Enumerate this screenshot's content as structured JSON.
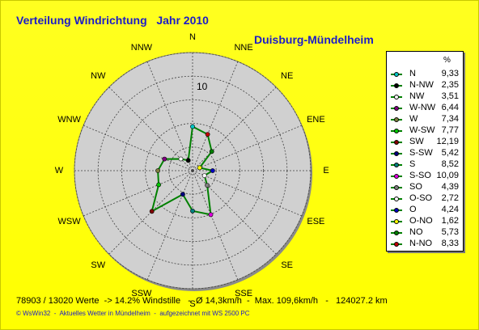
{
  "title": "Verteilung Windrichtung   Jahr 2010",
  "station": "Duisburg-Mündelheim",
  "footer": "78903 / 13020 Werte  -> 14.2% Windstille   -  Ø 14,3km/h  -  Max. 109,6km/h   -   124027.2 km",
  "credit": "© WsWin32  -  Aktuelles Wetter in Mündelheim  -  aufgezeichnet mit WS 2500 PC",
  "chart_data": {
    "type": "radar",
    "ring_label": "10",
    "rmax": 25,
    "rings": [
      5,
      10,
      15,
      20,
      25
    ],
    "legend_header": "%",
    "directions": [
      "N",
      "NNE",
      "NE",
      "ENE",
      "E",
      "ESE",
      "SE",
      "SSE",
      "S",
      "SSW",
      "SW",
      "WSW",
      "W",
      "WNW",
      "NW",
      "NNW"
    ],
    "series": [
      {
        "label": "N",
        "value": "9,33",
        "deg": 0,
        "color": "#00c8c8"
      },
      {
        "label": "N-NW",
        "value": "2,35",
        "deg": 337.5,
        "color": "#000000"
      },
      {
        "label": "NW",
        "value": "3,51",
        "deg": 315,
        "color": "#ffffff"
      },
      {
        "label": "W-NW",
        "value": "6,44",
        "deg": 292.5,
        "color": "#800080"
      },
      {
        "label": "W",
        "value": "7,34",
        "deg": 270,
        "color": "#808040"
      },
      {
        "label": "W-SW",
        "value": "7,77",
        "deg": 247.5,
        "color": "#00c800"
      },
      {
        "label": "SW",
        "value": "12,19",
        "deg": 225,
        "color": "#800000"
      },
      {
        "label": "S-SW",
        "value": "5,42",
        "deg": 202.5,
        "color": "#000080"
      },
      {
        "label": "S",
        "value": "8,52",
        "deg": 180,
        "color": "#008080"
      },
      {
        "label": "S-SO",
        "value": "10,09",
        "deg": 157.5,
        "color": "#e000e0"
      },
      {
        "label": "SO",
        "value": "4,39",
        "deg": 135,
        "color": "#808080"
      },
      {
        "label": "O-SO",
        "value": "2,72",
        "deg": 112.5,
        "color": "#ffffff"
      },
      {
        "label": "O",
        "value": "4,24",
        "deg": 90,
        "color": "#0000c0"
      },
      {
        "label": "O-NO",
        "value": "1,62",
        "deg": 67.5,
        "color": "#ffff00"
      },
      {
        "label": "NO",
        "value": "5,73",
        "deg": 45,
        "color": "#008000"
      },
      {
        "label": "N-NO",
        "value": "8,33",
        "deg": 22.5,
        "color": "#c00000"
      }
    ]
  }
}
